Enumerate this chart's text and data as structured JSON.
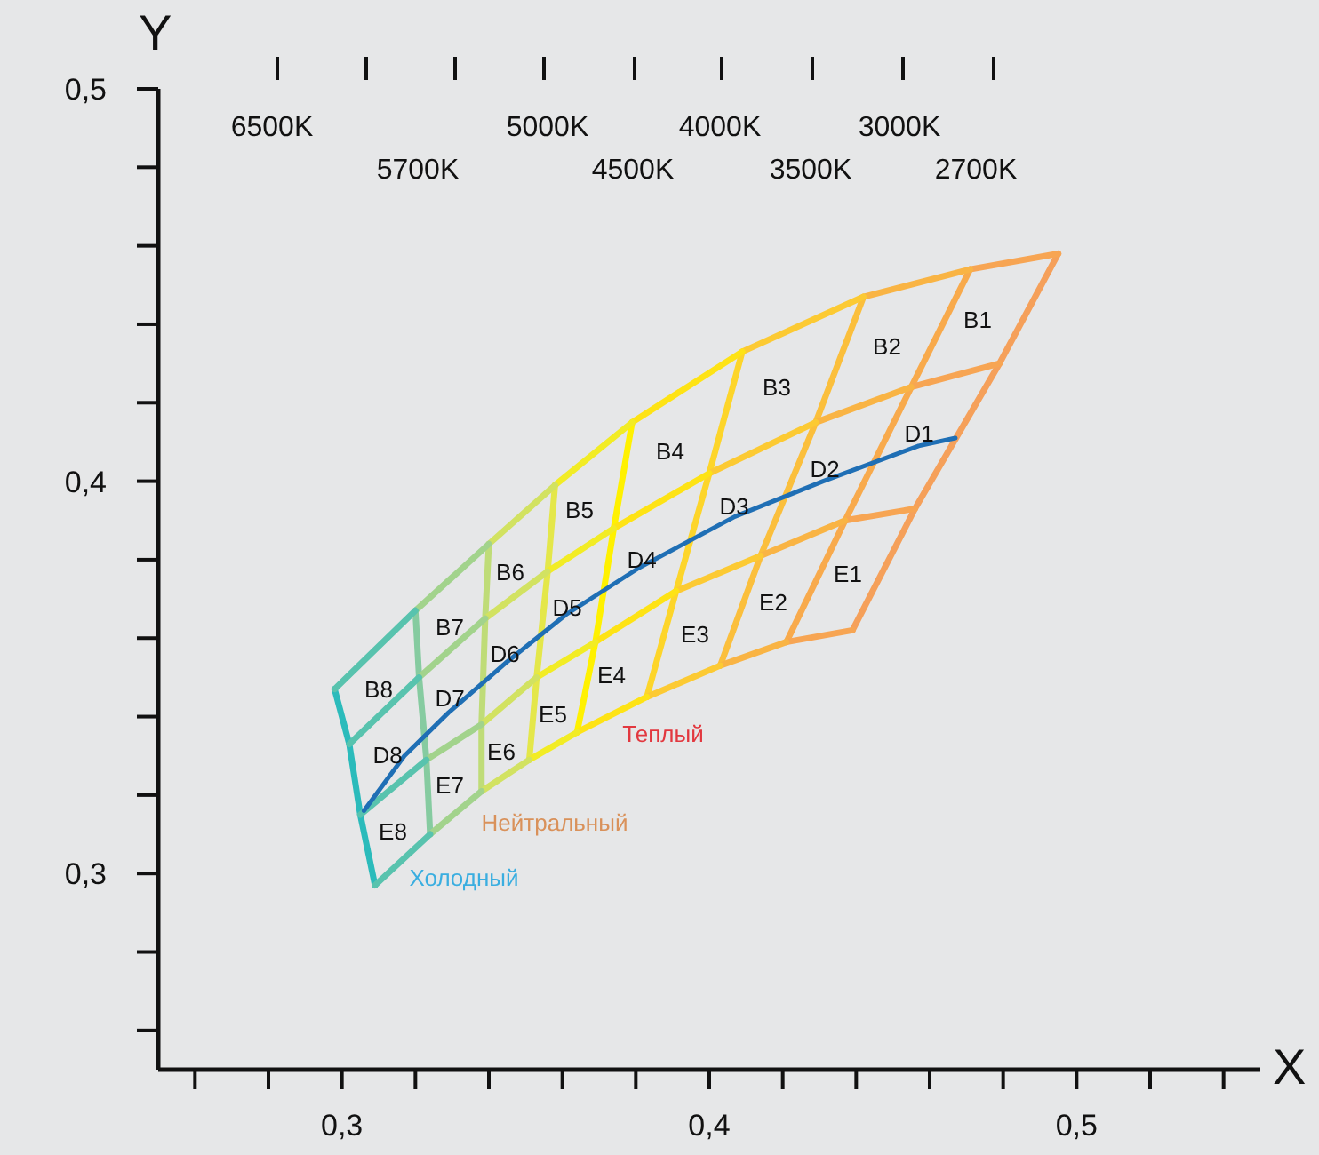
{
  "chart_data": {
    "type": "line",
    "xlabel": "X",
    "ylabel": "Y",
    "xlim": [
      0.25,
      0.55
    ],
    "xticks": [
      {
        "value": 0.26,
        "label": null
      },
      {
        "value": 0.28,
        "label": null
      },
      {
        "value": 0.3,
        "label": "0,3"
      },
      {
        "value": 0.32,
        "label": null
      },
      {
        "value": 0.34,
        "label": null
      },
      {
        "value": 0.36,
        "label": null
      },
      {
        "value": 0.38,
        "label": null
      },
      {
        "value": 0.4,
        "label": "0,4"
      },
      {
        "value": 0.42,
        "label": null
      },
      {
        "value": 0.44,
        "label": null
      },
      {
        "value": 0.46,
        "label": null
      },
      {
        "value": 0.48,
        "label": null
      },
      {
        "value": 0.5,
        "label": "0,5"
      },
      {
        "value": 0.52,
        "label": null
      },
      {
        "value": 0.54,
        "label": null
      }
    ],
    "ylim": [
      0.25,
      0.5
    ],
    "yticks": [
      {
        "value": 0.26,
        "label": null
      },
      {
        "value": 0.28,
        "label": null
      },
      {
        "value": 0.3,
        "label": "0,3"
      },
      {
        "value": 0.32,
        "label": null
      },
      {
        "value": 0.34,
        "label": null
      },
      {
        "value": 0.36,
        "label": null
      },
      {
        "value": 0.38,
        "label": null
      },
      {
        "value": 0.4,
        "label": "0,4"
      },
      {
        "value": 0.42,
        "label": null
      },
      {
        "value": 0.44,
        "label": null
      },
      {
        "value": 0.46,
        "label": null
      },
      {
        "value": 0.48,
        "label": null
      },
      {
        "value": 0.5,
        "label": "0,5"
      }
    ],
    "grid": false,
    "legend": false,
    "marker": "none",
    "line_style": "solid",
    "series": [
      {
        "color": "#f5a05a",
        "x": [
          0.495,
          0.479,
          0.456,
          0.439
        ],
        "values": [
          0.458,
          0.43,
          0.393,
          0.362
        ]
      },
      {
        "color": "#f8aa4c",
        "x": [
          0.471,
          0.455,
          0.437,
          0.421
        ],
        "values": [
          0.454,
          0.424,
          0.39,
          0.359
        ]
      },
      {
        "color": "#fbbf3c",
        "x": [
          0.442,
          0.429,
          0.414,
          0.403
        ],
        "values": [
          0.447,
          0.415,
          0.381,
          0.353
        ]
      },
      {
        "color": "#fdd52a",
        "x": [
          0.409,
          0.4,
          0.391,
          0.383
        ],
        "values": [
          0.433,
          0.402,
          0.372,
          0.345
        ]
      },
      {
        "color": "#fff100",
        "x": [
          0.379,
          0.374,
          0.369,
          0.364
        ],
        "values": [
          0.415,
          0.388,
          0.359,
          0.336
        ]
      },
      {
        "color": "#e4e74a",
        "x": [
          0.358,
          0.356,
          0.353,
          0.351
        ],
        "values": [
          0.399,
          0.377,
          0.35,
          0.329
        ]
      },
      {
        "color": "#bfdc78",
        "x": [
          0.34,
          0.339,
          0.338,
          0.338
        ],
        "values": [
          0.384,
          0.365,
          0.338,
          0.321
        ]
      },
      {
        "color": "#86cba0",
        "x": [
          0.32,
          0.321,
          0.323,
          0.324
        ],
        "values": [
          0.367,
          0.35,
          0.329,
          0.31
        ]
      },
      {
        "color": "#2bbbbb",
        "x": [
          0.298,
          0.302,
          0.305,
          0.309
        ],
        "values": [
          0.347,
          0.333,
          0.315,
          0.297
        ]
      },
      {
        "color": "#f7a553",
        "x": [
          0.495,
          0.471
        ],
        "values": [
          0.458,
          0.454
        ]
      },
      {
        "color": "#f9b444",
        "x": [
          0.471,
          0.442
        ],
        "values": [
          0.454,
          0.447
        ]
      },
      {
        "color": "#fcca33",
        "x": [
          0.442,
          0.409
        ],
        "values": [
          0.447,
          0.433
        ]
      },
      {
        "color": "#fee315",
        "x": [
          0.409,
          0.379
        ],
        "values": [
          0.433,
          0.415
        ]
      },
      {
        "color": "#f2ec25",
        "x": [
          0.379,
          0.358
        ],
        "values": [
          0.415,
          0.399
        ]
      },
      {
        "color": "#d2e261",
        "x": [
          0.358,
          0.34
        ],
        "values": [
          0.399,
          0.384
        ]
      },
      {
        "color": "#a2d38c",
        "x": [
          0.34,
          0.32
        ],
        "values": [
          0.384,
          0.367
        ]
      },
      {
        "color": "#58c3ae",
        "x": [
          0.32,
          0.298
        ],
        "values": [
          0.367,
          0.347
        ]
      },
      {
        "color": "#f7a553",
        "x": [
          0.479,
          0.455
        ],
        "values": [
          0.43,
          0.424
        ]
      },
      {
        "color": "#f9b444",
        "x": [
          0.455,
          0.429
        ],
        "values": [
          0.424,
          0.415
        ]
      },
      {
        "color": "#fcca33",
        "x": [
          0.429,
          0.4
        ],
        "values": [
          0.415,
          0.402
        ]
      },
      {
        "color": "#fee315",
        "x": [
          0.4,
          0.374
        ],
        "values": [
          0.402,
          0.388
        ]
      },
      {
        "color": "#f2ec25",
        "x": [
          0.374,
          0.356
        ],
        "values": [
          0.388,
          0.377
        ]
      },
      {
        "color": "#d2e261",
        "x": [
          0.356,
          0.339
        ],
        "values": [
          0.377,
          0.365
        ]
      },
      {
        "color": "#a2d38c",
        "x": [
          0.339,
          0.321
        ],
        "values": [
          0.365,
          0.35
        ]
      },
      {
        "color": "#58c3ae",
        "x": [
          0.321,
          0.302
        ],
        "values": [
          0.35,
          0.333
        ]
      },
      {
        "color": "#f7a553",
        "x": [
          0.456,
          0.437
        ],
        "values": [
          0.393,
          0.39
        ]
      },
      {
        "color": "#f9b444",
        "x": [
          0.437,
          0.414
        ],
        "values": [
          0.39,
          0.381
        ]
      },
      {
        "color": "#fcca33",
        "x": [
          0.414,
          0.391
        ],
        "values": [
          0.381,
          0.372
        ]
      },
      {
        "color": "#fee315",
        "x": [
          0.391,
          0.369
        ],
        "values": [
          0.372,
          0.359
        ]
      },
      {
        "color": "#f2ec25",
        "x": [
          0.369,
          0.353
        ],
        "values": [
          0.359,
          0.35
        ]
      },
      {
        "color": "#d2e261",
        "x": [
          0.353,
          0.338
        ],
        "values": [
          0.35,
          0.338
        ]
      },
      {
        "color": "#a2d38c",
        "x": [
          0.338,
          0.323
        ],
        "values": [
          0.338,
          0.329
        ]
      },
      {
        "color": "#58c3ae",
        "x": [
          0.323,
          0.305
        ],
        "values": [
          0.329,
          0.315
        ]
      },
      {
        "color": "#f7a553",
        "x": [
          0.439,
          0.421
        ],
        "values": [
          0.362,
          0.359
        ]
      },
      {
        "color": "#f9b444",
        "x": [
          0.421,
          0.403
        ],
        "values": [
          0.359,
          0.353
        ]
      },
      {
        "color": "#fcca33",
        "x": [
          0.403,
          0.383
        ],
        "values": [
          0.353,
          0.345
        ]
      },
      {
        "color": "#fee315",
        "x": [
          0.383,
          0.364
        ],
        "values": [
          0.345,
          0.336
        ]
      },
      {
        "color": "#f2ec25",
        "x": [
          0.364,
          0.351
        ],
        "values": [
          0.336,
          0.329
        ]
      },
      {
        "color": "#d2e261",
        "x": [
          0.351,
          0.338
        ],
        "values": [
          0.329,
          0.321
        ]
      },
      {
        "color": "#a2d38c",
        "x": [
          0.338,
          0.324
        ],
        "values": [
          0.321,
          0.31
        ]
      },
      {
        "color": "#58c3ae",
        "x": [
          0.324,
          0.309
        ],
        "values": [
          0.31,
          0.297
        ]
      },
      {
        "color": "#1f6fb5",
        "x": [
          0.467,
          0.457,
          0.431,
          0.407,
          0.381,
          0.361,
          0.345,
          0.329,
          0.317,
          0.306
        ],
        "values": [
          0.411,
          0.409,
          0.4,
          0.391,
          0.378,
          0.366,
          0.354,
          0.341,
          0.33,
          0.316
        ]
      }
    ],
    "annotations": [
      "6500K",
      "5700K",
      "5000K",
      "4500K",
      "4000K",
      "3500K",
      "3000K",
      "2700K",
      "B1",
      "B2",
      "B3",
      "B4",
      "B5",
      "B6",
      "B7",
      "B8",
      "D1",
      "D2",
      "D3",
      "D4",
      "D5",
      "D6",
      "D7",
      "D8",
      "E1",
      "E2",
      "E3",
      "E4",
      "E5",
      "E6",
      "E7",
      "E8",
      "Теплый",
      "Нейтральный",
      "Холодный"
    ]
  }
}
